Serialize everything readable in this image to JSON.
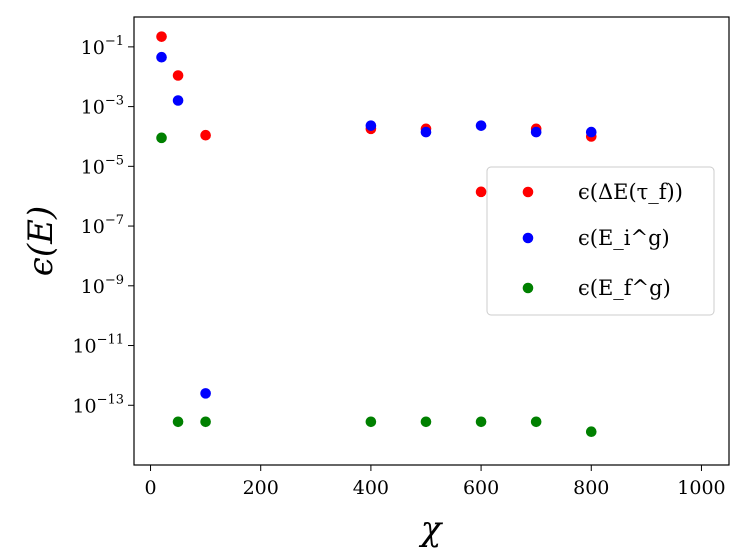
{
  "chart_data": {
    "type": "scatter",
    "xlabel": "χ",
    "ylabel": "ϵ(E)",
    "xlim": [
      -30,
      1050
    ],
    "ylim": [
      1e-15,
      1
    ],
    "yscale": "log",
    "grid": false,
    "legend_position": "center-right",
    "x_ticks": [
      {
        "value": 0,
        "label": "0"
      },
      {
        "value": 200,
        "label": "200"
      },
      {
        "value": 400,
        "label": "400"
      },
      {
        "value": 600,
        "label": "600"
      },
      {
        "value": 800,
        "label": "800"
      },
      {
        "value": 1000,
        "label": "1000"
      }
    ],
    "y_ticks": [
      {
        "value": 0.1,
        "base": "10",
        "exp": "−1"
      },
      {
        "value": 0.001,
        "base": "10",
        "exp": "−3"
      },
      {
        "value": 1e-05,
        "base": "10",
        "exp": "−5"
      },
      {
        "value": 1e-07,
        "base": "10",
        "exp": "−7"
      },
      {
        "value": 1e-09,
        "base": "10",
        "exp": "−9"
      },
      {
        "value": 1e-11,
        "base": "10",
        "exp": "−11"
      },
      {
        "value": 1e-13,
        "base": "10",
        "exp": "−13"
      }
    ],
    "series": [
      {
        "name": "ϵ(ΔE(τ_f))",
        "color": "#ff0000",
        "points": [
          {
            "x": 20,
            "y": 0.22
          },
          {
            "x": 50,
            "y": 0.011
          },
          {
            "x": 100,
            "y": 0.00011
          },
          {
            "x": 400,
            "y": 0.00018
          },
          {
            "x": 500,
            "y": 0.00018
          },
          {
            "x": 600,
            "y": 1.4e-06
          },
          {
            "x": 700,
            "y": 0.00018
          },
          {
            "x": 800,
            "y": 0.0001
          }
        ]
      },
      {
        "name": "ϵ(E_i^g)",
        "color": "#0000ff",
        "points": [
          {
            "x": 20,
            "y": 0.045
          },
          {
            "x": 50,
            "y": 0.0016
          },
          {
            "x": 100,
            "y": 2.5e-13
          },
          {
            "x": 400,
            "y": 0.00023
          },
          {
            "x": 500,
            "y": 0.00014
          },
          {
            "x": 600,
            "y": 0.00023
          },
          {
            "x": 700,
            "y": 0.00014
          },
          {
            "x": 800,
            "y": 0.00014
          }
        ]
      },
      {
        "name": "ϵ(E_f^g)",
        "color": "#008000",
        "points": [
          {
            "x": 20,
            "y": 9e-05
          },
          {
            "x": 50,
            "y": 2.8e-14
          },
          {
            "x": 100,
            "y": 2.8e-14
          },
          {
            "x": 400,
            "y": 2.8e-14
          },
          {
            "x": 500,
            "y": 2.8e-14
          },
          {
            "x": 600,
            "y": 2.8e-14
          },
          {
            "x": 700,
            "y": 2.8e-14
          },
          {
            "x": 800,
            "y": 1.3e-14
          }
        ]
      }
    ]
  }
}
